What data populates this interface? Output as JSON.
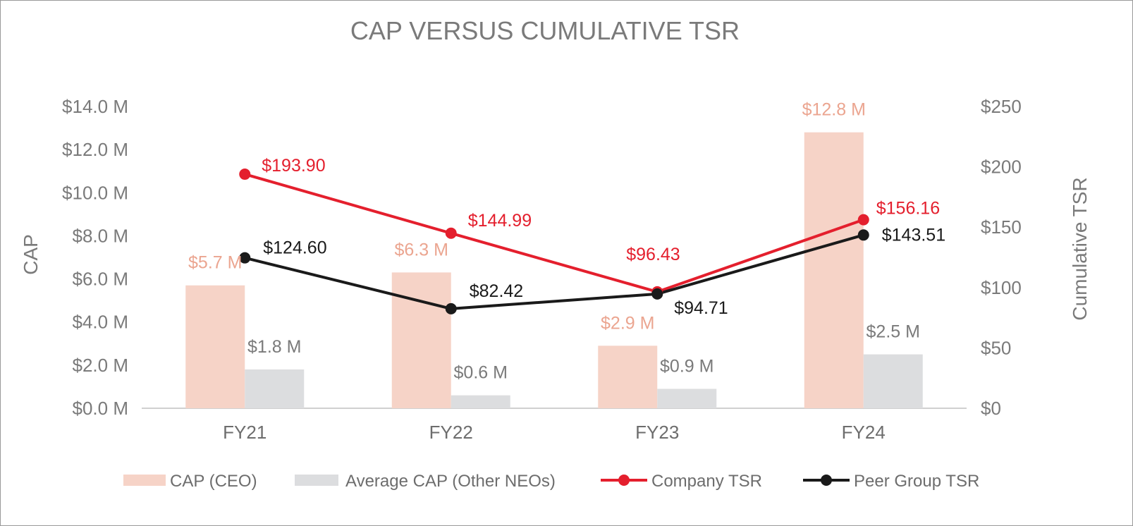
{
  "chart_data": {
    "type": "bar",
    "title": "CAP VERSUS CUMULATIVE TSR",
    "categories": [
      "FY21",
      "FY22",
      "FY23",
      "FY24"
    ],
    "ylabel": "CAP",
    "y2label": "Cumulative TSR",
    "ylim": [
      0,
      14
    ],
    "y2lim": [
      0,
      250
    ],
    "y_ticks": [
      "$0.0 M",
      "$2.0 M",
      "$4.0 M",
      "$6.0 M",
      "$8.0 M",
      "$10.0 M",
      "$12.0 M",
      "$14.0 M"
    ],
    "y2_ticks": [
      "$0",
      "$50",
      "$100",
      "$150",
      "$200",
      "$250"
    ],
    "series": [
      {
        "name": "CAP (CEO)",
        "kind": "bar",
        "axis": "left",
        "color": "#f6d3c7",
        "values": [
          5.7,
          6.3,
          2.9,
          12.8
        ],
        "labels": [
          "$5.7 M",
          "$6.3 M",
          "$2.9 M",
          "$12.8 M"
        ]
      },
      {
        "name": "Average CAP (Other NEOs)",
        "kind": "bar",
        "axis": "left",
        "color": "#dcdddf",
        "values": [
          1.8,
          0.6,
          0.9,
          2.5
        ],
        "labels": [
          "$1.8 M",
          "$0.6 M",
          "$0.9 M",
          "$2.5 M"
        ]
      },
      {
        "name": "Company TSR",
        "kind": "line",
        "axis": "right",
        "color": "#e41f2d",
        "values": [
          193.9,
          144.99,
          96.43,
          156.16
        ],
        "labels": [
          "$193.90",
          "$144.99",
          "$96.43",
          "$156.16"
        ]
      },
      {
        "name": "Peer Group TSR",
        "kind": "line",
        "axis": "right",
        "color": "#1a1a1a",
        "values": [
          124.6,
          82.42,
          94.71,
          143.51
        ],
        "labels": [
          "$124.60",
          "$82.42",
          "$94.71",
          "$143.51"
        ]
      }
    ],
    "legend_position": "bottom"
  }
}
